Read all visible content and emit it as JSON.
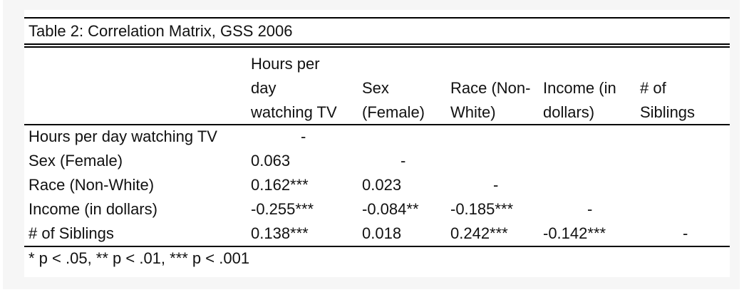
{
  "table": {
    "title": "Table 2: Correlation Matrix, GSS 2006",
    "columns": [
      "Hours per\nday\nwatching TV",
      "Sex\n(Female)",
      "Race (Non-\nWhite)",
      "Income (in\ndollars)",
      "# of\nSiblings"
    ],
    "rows": [
      {
        "label": "Hours per day watching TV",
        "cells": [
          "-",
          "",
          "",
          "",
          ""
        ]
      },
      {
        "label": "Sex (Female)",
        "cells": [
          "0.063",
          "-",
          "",
          "",
          ""
        ]
      },
      {
        "label": "Race (Non-White)",
        "cells": [
          "0.162***",
          "0.023",
          "-",
          "",
          ""
        ]
      },
      {
        "label": "Income (in dollars)",
        "cells": [
          "-0.255***",
          "-0.084**",
          "-0.185***",
          "-",
          ""
        ]
      },
      {
        "label": "# of Siblings",
        "cells": [
          "0.138***",
          "0.018",
          "0.242***",
          "-0.142***",
          "-"
        ]
      }
    ],
    "note": "* p < .05, ** p < .01, *** p < .001"
  }
}
